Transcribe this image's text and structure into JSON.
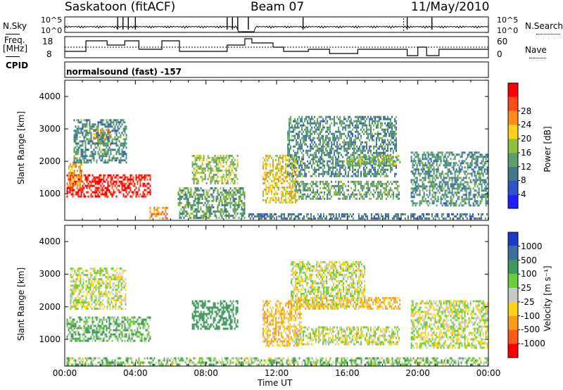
{
  "header": {
    "station": "Saskatoon (fitACF)",
    "beam": "Beam 07",
    "date": "11/May/2010"
  },
  "status_panel": {
    "left_label": "N.Sky",
    "right_label": "N.Search",
    "left_ticks": [
      "10^5",
      "10^0"
    ],
    "right_ticks": [
      "10^5",
      "10^0"
    ]
  },
  "freq_panel": {
    "label_line1": "Freq.",
    "label_line2": "[MHz]",
    "left_ticks": [
      "18",
      "8"
    ],
    "right_ticks": [
      "60",
      "0"
    ],
    "right_label": "Nave"
  },
  "cpid": {
    "label": "CPID",
    "value": "normalsound (fast) -157"
  },
  "axes": {
    "ylabel": "Slant Range [km]",
    "xlabel": "Time UT",
    "y_ticks": [
      "1000",
      "2000",
      "3000",
      "4000"
    ],
    "x_ticks": [
      "00:00",
      "04:00",
      "08:00",
      "12:00",
      "16:00",
      "20:00",
      "00:00"
    ]
  },
  "power_colorbar": {
    "label": "Power [dB]",
    "ticks": [
      "4",
      "8",
      "12",
      "16",
      "20",
      "24",
      "28"
    ],
    "colors": [
      "#1f1fff",
      "#2b55c8",
      "#3f7a8a",
      "#5aa06a",
      "#8fc03a",
      "#ffd21a",
      "#ff8c1a",
      "#ff4a1a",
      "#ff0000"
    ]
  },
  "velocity_colorbar": {
    "label": "Velocity [m s⁻¹]",
    "ticks": [
      "1000",
      "500",
      "100",
      "25",
      "-25",
      "-100",
      "-500",
      "-1000"
    ],
    "colors": [
      "#1a3ccc",
      "#3a70a0",
      "#3d9a5a",
      "#6ccc3a",
      "#c8c8c8",
      "#ffd21a",
      "#ff9a1a",
      "#ff5a1a",
      "#ff0000"
    ]
  },
  "chart_data": [
    {
      "type": "line",
      "title": "Saskatoon (fitACF) Beam 07 11/May/2010",
      "xlabel": "Time UT",
      "ylabel": "N.Sky / N.Search",
      "x_range": [
        "00:00",
        "24:00"
      ],
      "series": [
        {
          "name": "N.Sky"
        },
        {
          "name": "N.Search"
        }
      ]
    },
    {
      "type": "line",
      "ylabel": "Freq. [MHz]",
      "ylim": [
        8,
        18
      ],
      "y2label": "Nave",
      "y2lim": [
        0,
        60
      ],
      "x": [
        0,
        1.2,
        2.4,
        3.4,
        4.2,
        5.5,
        6.5,
        9.2,
        10.2,
        10.6,
        11.8,
        12.4,
        13.8,
        15,
        16.6,
        19.4,
        20,
        20.5,
        21.2,
        24
      ],
      "series": [
        {
          "name": "Freq.",
          "values": [
            11,
            16,
            14,
            16,
            12,
            16,
            11,
            14,
            17,
            15,
            13,
            11,
            12,
            10,
            12,
            9,
            13,
            9,
            12,
            12
          ]
        },
        {
          "name": "Nave",
          "values": [
            30,
            30,
            30,
            30,
            30,
            30,
            30,
            30,
            30,
            30,
            30,
            30,
            30,
            30,
            30,
            30,
            30,
            30,
            30,
            30
          ]
        }
      ]
    },
    {
      "type": "heatmap",
      "xlabel": "Time UT",
      "ylabel": "Slant Range [km]",
      "ylim": [
        180,
        4500
      ],
      "colorbar_label": "Power [dB]",
      "colorbar_range": [
        0,
        30
      ],
      "cells": [
        {
          "t_start": 0.1,
          "t_end": 4.9,
          "r_start": 900,
          "r_end": 1600,
          "value": 28
        },
        {
          "t_start": 0.2,
          "t_end": 1.0,
          "r_start": 1200,
          "r_end": 2000,
          "value": 20
        },
        {
          "t_start": 1.6,
          "t_end": 2.6,
          "r_start": 2500,
          "r_end": 3000,
          "value": 22
        },
        {
          "t_start": 0.5,
          "t_end": 3.5,
          "r_start": 1900,
          "r_end": 3300,
          "value": 10
        },
        {
          "t_start": 4.8,
          "t_end": 5.8,
          "r_start": 200,
          "r_end": 600,
          "value": 22
        },
        {
          "t_start": 6.4,
          "t_end": 10.2,
          "r_start": 200,
          "r_end": 1200,
          "value": 12
        },
        {
          "t_start": 7.2,
          "t_end": 9.8,
          "r_start": 1300,
          "r_end": 2200,
          "value": 14
        },
        {
          "t_start": 11.2,
          "t_end": 13.2,
          "r_start": 700,
          "r_end": 2200,
          "value": 18
        },
        {
          "t_start": 12.6,
          "t_end": 18.8,
          "r_start": 1500,
          "r_end": 3400,
          "value": 10
        },
        {
          "t_start": 13.0,
          "t_end": 19.0,
          "r_start": 800,
          "r_end": 1400,
          "value": 12
        },
        {
          "t_start": 16.0,
          "t_end": 19.0,
          "r_start": 1900,
          "r_end": 2200,
          "value": 14
        },
        {
          "t_start": 19.6,
          "t_end": 24.0,
          "r_start": 600,
          "r_end": 2300,
          "value": 10
        },
        {
          "t_start": 10.4,
          "t_end": 24.0,
          "r_start": 180,
          "r_end": 400,
          "value": 8
        }
      ]
    },
    {
      "type": "heatmap",
      "xlabel": "Time UT",
      "ylabel": "Slant Range [km]",
      "ylim": [
        180,
        4500
      ],
      "colorbar_label": "Velocity [m s⁻¹]",
      "colorbar_range": [
        -1000,
        1000
      ],
      "cells": [
        {
          "t_start": 0.1,
          "t_end": 4.9,
          "r_start": 900,
          "r_end": 1700,
          "value": 80
        },
        {
          "t_start": 0.3,
          "t_end": 3.5,
          "r_start": 1900,
          "r_end": 3200,
          "value": 0
        },
        {
          "t_start": 7.2,
          "t_end": 9.8,
          "r_start": 1300,
          "r_end": 2200,
          "value": 300
        },
        {
          "t_start": 11.2,
          "t_end": 13.4,
          "r_start": 800,
          "r_end": 2200,
          "value": -100
        },
        {
          "t_start": 12.8,
          "t_end": 17.0,
          "r_start": 2000,
          "r_end": 3400,
          "value": 0
        },
        {
          "t_start": 13.2,
          "t_end": 19.0,
          "r_start": 1900,
          "r_end": 2300,
          "value": -100
        },
        {
          "t_start": 13.0,
          "t_end": 19.0,
          "r_start": 800,
          "r_end": 1400,
          "value": 0
        },
        {
          "t_start": 19.6,
          "t_end": 24.0,
          "r_start": 700,
          "r_end": 2200,
          "value": 0
        },
        {
          "t_start": 0.1,
          "t_end": 24.0,
          "r_start": 180,
          "r_end": 450,
          "value": 60
        }
      ]
    }
  ]
}
